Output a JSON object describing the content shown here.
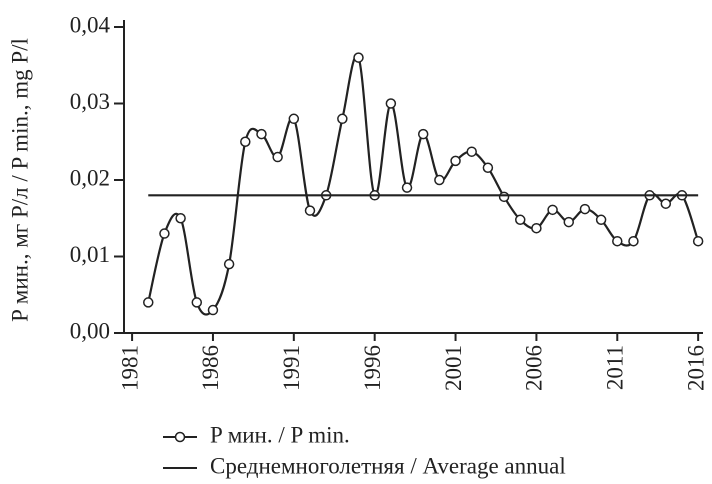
{
  "chart_data": {
    "type": "line",
    "y_label": "P мин., мг P/л / P min., mg P/l",
    "xlim": [
      1980.5,
      2016.3
    ],
    "xticks": [
      1981,
      1986,
      1991,
      1996,
      2001,
      2006,
      2011,
      2016
    ],
    "ylim": [
      0,
      0.04
    ],
    "yticks": [
      {
        "value": 0,
        "label": "0,00"
      },
      {
        "value": 0.01,
        "label": "0,01"
      },
      {
        "value": 0.02,
        "label": "0,02"
      },
      {
        "value": 0.03,
        "label": "0,03"
      },
      {
        "value": 0.04,
        "label": "0,04"
      }
    ],
    "grid": false,
    "legend": "bottom",
    "series": [
      {
        "name": "P мин. / P min.",
        "color": "#222222",
        "smooth": true,
        "markers": true,
        "x": [
          1982,
          1983,
          1984,
          1985,
          1986,
          1987,
          1988,
          1989,
          1990,
          1991,
          1992,
          1993,
          1994,
          1995,
          1996,
          1997,
          1998,
          1999,
          2000,
          2001,
          2002,
          2003,
          2004,
          2005,
          2006,
          2007,
          2008,
          2009,
          2010,
          2011,
          2012,
          2013,
          2014,
          2015,
          2016
        ],
        "values": [
          0.004,
          0.013,
          0.015,
          0.004,
          0.003,
          0.009,
          0.025,
          0.026,
          0.023,
          0.028,
          0.016,
          0.018,
          0.028,
          0.036,
          0.018,
          0.03,
          0.019,
          0.026,
          0.02,
          0.0225,
          0.0237,
          0.0216,
          0.0178,
          0.0148,
          0.0137,
          0.0161,
          0.0145,
          0.0162,
          0.0148,
          0.012,
          0.012,
          0.018,
          0.0169,
          0.018,
          0.012
        ]
      },
      {
        "name": "Среднемноголетняя / Average annual",
        "color": "#222222",
        "smooth": false,
        "markers": false,
        "x": [
          1982,
          2016
        ],
        "values": [
          0.018,
          0.018
        ]
      }
    ]
  }
}
